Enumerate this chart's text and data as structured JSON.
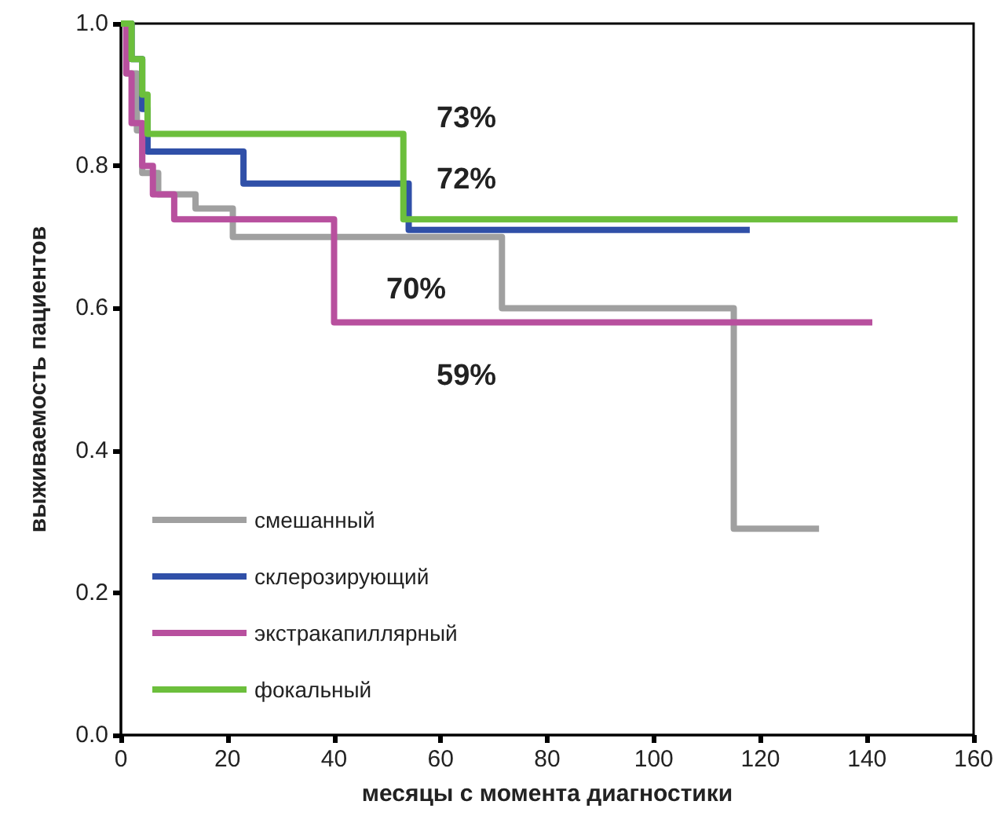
{
  "chart_data": {
    "type": "step",
    "xlabel": "месяцы с момента диагностики",
    "ylabel": "выживаемость пациентов",
    "xlim": [
      0,
      160
    ],
    "xticks": [
      0,
      20,
      40,
      60,
      80,
      100,
      120,
      140,
      160
    ],
    "ylim": [
      0,
      1
    ],
    "yticks": [
      {
        "value": 0,
        "label": "0.0"
      },
      {
        "value": 0.2,
        "label": "0.2"
      },
      {
        "value": 0.4,
        "label": "0.4"
      },
      {
        "value": 0.6,
        "label": "0.6"
      },
      {
        "value": 0.8,
        "label": "0.8"
      },
      {
        "value": 1,
        "label": "1.0"
      }
    ],
    "grid": false,
    "legend": "bottom left",
    "marker": "none",
    "line_style": "solid",
    "series": [
      {
        "name": "смешанный",
        "color": "#a0a0a0",
        "x": [
          0,
          1,
          3,
          4,
          7,
          14,
          21,
          71.5,
          115,
          131
        ],
        "values": [
          1,
          0.93,
          0.85,
          0.79,
          0.76,
          0.74,
          0.7,
          0.6,
          0.29,
          0.29
        ]
      },
      {
        "name": "склерозирующий",
        "color": "#3050a8",
        "x": [
          0,
          2,
          4,
          5,
          23,
          54,
          118
        ],
        "values": [
          1,
          0.95,
          0.88,
          0.82,
          0.775,
          0.71,
          0.71
        ]
      },
      {
        "name": "экстракапиллярный",
        "color": "#b8509e",
        "x": [
          0,
          1,
          2,
          4,
          6,
          10,
          40,
          141
        ],
        "values": [
          1,
          0.93,
          0.86,
          0.8,
          0.76,
          0.725,
          0.58,
          0.58
        ]
      },
      {
        "name": "фокальный",
        "color": "#6cbf3c",
        "x": [
          0,
          2,
          4,
          5,
          53,
          157
        ],
        "values": [
          1,
          0.95,
          0.9,
          0.845,
          0.725,
          0.725
        ]
      }
    ],
    "annotations": [
      "73%",
      "72%",
      "70%",
      "59%"
    ]
  }
}
